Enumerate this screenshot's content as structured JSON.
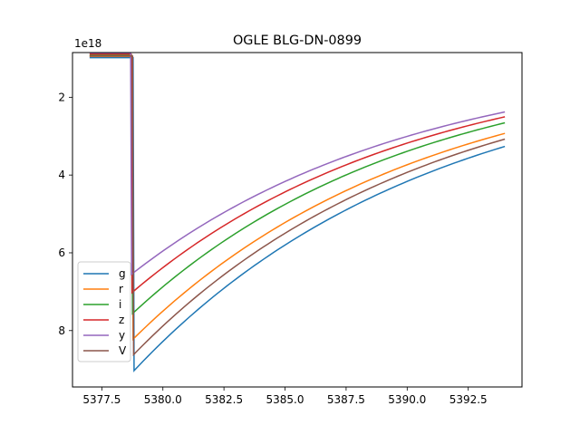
{
  "chart_data": {
    "type": "line",
    "title": "OGLE BLG-DN-0899",
    "xlabel": "",
    "ylabel": "",
    "y_offset_label": "1e18",
    "y_inverted": true,
    "xlim": [
      5376.3,
      5394.7
    ],
    "ylim": [
      9.45,
      0.85
    ],
    "x_ticks": [
      5377.5,
      5380.0,
      5382.5,
      5385.0,
      5387.5,
      5390.0,
      5392.5
    ],
    "x_tick_labels": [
      "5377.5",
      "5380.0",
      "5382.5",
      "5385.0",
      "5387.5",
      "5390.0",
      "5392.5"
    ],
    "y_ticks": [
      2,
      4,
      6,
      8
    ],
    "y_tick_labels": [
      "2",
      "4",
      "6",
      "8"
    ],
    "legend_position": "lower-left",
    "grid": false,
    "series": [
      {
        "name": "g",
        "color": "#1f77b4",
        "plateau": 0.98,
        "drop_x": 5378.82,
        "peak_y": 9.03,
        "end_x": 5394.0,
        "end_y": 2.43,
        "tail_k": 0.083
      },
      {
        "name": "r",
        "color": "#ff7f0e",
        "plateau": 0.95,
        "drop_x": 5378.78,
        "peak_y": 8.22,
        "end_x": 5394.0,
        "end_y": 2.33,
        "tail_k": 0.0855
      },
      {
        "name": "i",
        "color": "#2ca02c",
        "plateau": 0.92,
        "drop_x": 5378.76,
        "peak_y": 7.56,
        "end_x": 5394.0,
        "end_y": 2.13,
        "tail_k": 0.088
      },
      {
        "name": "z",
        "color": "#d62728",
        "plateau": 0.89,
        "drop_x": 5378.74,
        "peak_y": 7.02,
        "end_x": 5394.0,
        "end_y": 2.03,
        "tail_k": 0.0875
      },
      {
        "name": "y",
        "color": "#9467bd",
        "plateau": 0.86,
        "drop_x": 5378.72,
        "peak_y": 6.55,
        "end_x": 5394.0,
        "end_y": 1.93,
        "tail_k": 0.0865
      },
      {
        "name": "V",
        "color": "#8c564b",
        "plateau": 0.94,
        "drop_x": 5378.8,
        "peak_y": 8.62,
        "end_x": 5394.0,
        "end_y": 2.38,
        "tail_k": 0.0842
      }
    ],
    "x_start": 5377.0
  }
}
